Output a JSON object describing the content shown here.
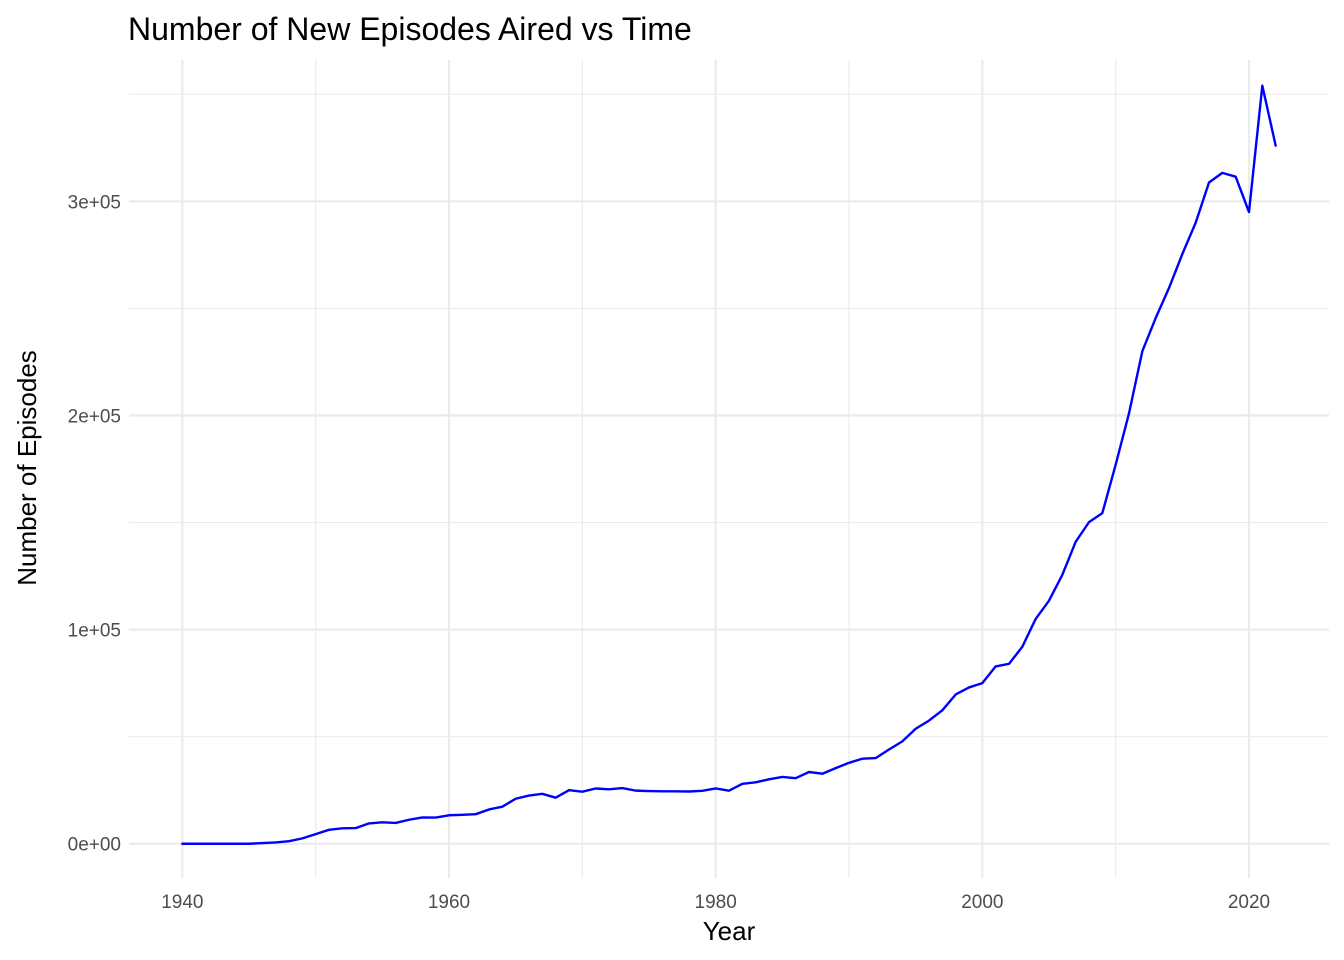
{
  "chart_data": {
    "type": "line",
    "title": "Number of New Episodes Aired vs Time",
    "xlabel": "Year",
    "ylabel": "Number of Episodes",
    "xlim": [
      1936,
      2026
    ],
    "ylim": [
      -16000,
      366000
    ],
    "x_ticks": [
      1940,
      1960,
      1980,
      2000,
      2020
    ],
    "x_tick_labels": [
      "1940",
      "1960",
      "1980",
      "2000",
      "2020"
    ],
    "x_minor_ticks": [
      1950,
      1970,
      1990,
      2010
    ],
    "y_ticks": [
      0,
      100000,
      200000,
      300000
    ],
    "y_tick_labels": [
      "0e+00",
      "1e+05",
      "2e+05",
      "3e+05"
    ],
    "y_minor_ticks": [
      50000,
      150000,
      250000,
      350000
    ],
    "grid": true,
    "legend": "none",
    "line_color": "#0000ff",
    "series": [
      {
        "x": [
          1940,
          1941,
          1942,
          1943,
          1944,
          1945,
          1946,
          1947,
          1948,
          1949,
          1950,
          1951,
          1952,
          1953,
          1954,
          1955,
          1956,
          1957,
          1958,
          1959,
          1960,
          1961,
          1962,
          1963,
          1964,
          1965,
          1966,
          1967,
          1968,
          1969,
          1970,
          1971,
          1972,
          1973,
          1974,
          1975,
          1976,
          1977,
          1978,
          1979,
          1980,
          1981,
          1982,
          1983,
          1984,
          1985,
          1986,
          1987,
          1988,
          1989,
          1990,
          1991,
          1992,
          1993,
          1994,
          1995,
          1996,
          1997,
          1998,
          1999,
          2000,
          2001,
          2002,
          2003,
          2004,
          2005,
          2006,
          2007,
          2008,
          2009,
          2010,
          2011,
          2012,
          2013,
          2014,
          2015,
          2016,
          2017,
          2018,
          2019,
          2020,
          2021,
          2022
        ],
        "values": [
          0,
          0,
          0,
          0,
          0,
          0,
          300,
          600,
          1200,
          2500,
          4500,
          6500,
          7200,
          7300,
          9500,
          10000,
          9700,
          11200,
          12300,
          12200,
          13300,
          13500,
          13800,
          16000,
          17300,
          21000,
          22500,
          23300,
          21500,
          25000,
          24300,
          25800,
          25400,
          26000,
          24800,
          24600,
          24500,
          24500,
          24400,
          24700,
          25800,
          24800,
          28000,
          28700,
          30100,
          31200,
          30600,
          33500,
          32700,
          35300,
          37800,
          39700,
          40000,
          44000,
          47800,
          53700,
          57500,
          62300,
          69700,
          73000,
          75000,
          82800,
          84000,
          92000,
          105000,
          113500,
          125600,
          141000,
          150200,
          154400,
          177000,
          201000,
          230000,
          245500,
          259500,
          275400,
          290000,
          308800,
          313300,
          311500,
          295000,
          354000,
          326000
        ]
      }
    ]
  }
}
